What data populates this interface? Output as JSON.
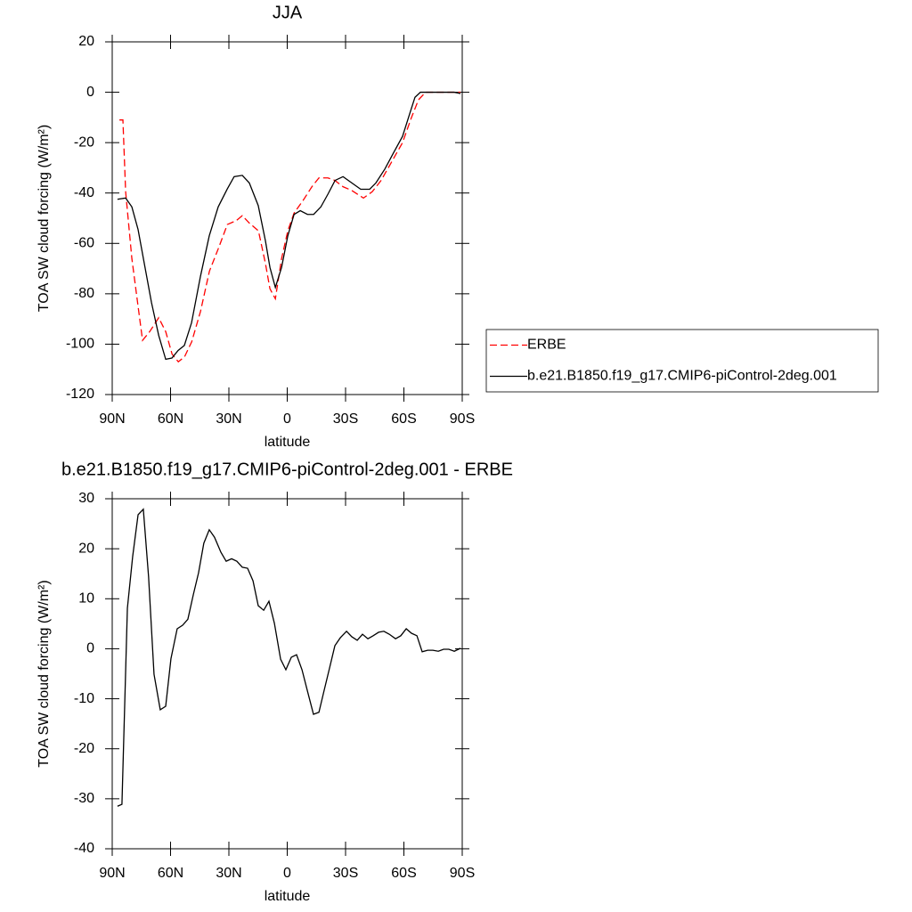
{
  "chart_data": [
    {
      "type": "line",
      "title": "JJA",
      "x_label": "latitude",
      "y_label": "TOA SW cloud forcing (W/m²)",
      "xlim": [
        90,
        -90
      ],
      "xticks": [
        {
          "value": 90,
          "label": "90N"
        },
        {
          "value": 60,
          "label": "60N"
        },
        {
          "value": 30,
          "label": "30N"
        },
        0,
        {
          "value": -30,
          "label": "30S"
        },
        {
          "value": -60,
          "label": "60S"
        },
        {
          "value": -90,
          "label": "90S"
        }
      ],
      "ylim": [
        -120,
        20
      ],
      "yticks": [
        20,
        0,
        -20,
        -40,
        -60,
        -80,
        -100,
        -120
      ],
      "legend": "right",
      "series": [
        {
          "name": "ERBE",
          "color": "#ff0000",
          "line_style": "dashed",
          "x": [
            86.3,
            84.5,
            83.1,
            79.9,
            76.7,
            74.4,
            70.7,
            66.1,
            62.5,
            59.2,
            56.0,
            52.8,
            49.1,
            44.6,
            40.0,
            35.4,
            30.8,
            26.3,
            23.1,
            19.4,
            14.8,
            11.2,
            8.9,
            6.1,
            2.9,
            -0.3,
            -3.5,
            -8.1,
            -12.7,
            -16.3,
            -20.9,
            -24.5,
            -28.7,
            -33.2,
            -39.2,
            -43.7,
            -48.3,
            -53.8,
            -59.3,
            -63.9,
            -67.5,
            -71.2,
            -79.0,
            -85.9,
            -89.1
          ],
          "values": [
            -11,
            -11,
            -39.5,
            -66,
            -85,
            -98.5,
            -95,
            -89.5,
            -95,
            -104,
            -107,
            -105,
            -99,
            -87,
            -71,
            -62,
            -52.5,
            -51,
            -49,
            -52,
            -55,
            -68,
            -78,
            -82,
            -66,
            -55,
            -48,
            -43,
            -37.5,
            -34,
            -34,
            -35,
            -37.5,
            -39,
            -42,
            -39.5,
            -35,
            -27.5,
            -20,
            -10,
            -3,
            0,
            0,
            0,
            0
          ]
        },
        {
          "name": "b.e21.B1850.f19_g17.CMIP6-piControl-2deg.001",
          "color": "#000000",
          "line_style": "solid",
          "x": [
            87.3,
            83.1,
            79.9,
            76.7,
            73.5,
            69.8,
            66.1,
            62.5,
            59.3,
            56.1,
            52.9,
            49.2,
            44.6,
            40.1,
            35.5,
            30.9,
            27.3,
            23.1,
            19.5,
            14.9,
            11.2,
            8.9,
            6.1,
            2.9,
            -0.3,
            -3.5,
            -6.7,
            -10.4,
            -13.6,
            -17.3,
            -20.9,
            -24.6,
            -28.7,
            -33.2,
            -37.8,
            -42.4,
            -45.6,
            -50.2,
            -54.7,
            -59.3,
            -63.0,
            -65.7,
            -68.5,
            -76.7,
            -85.9,
            -89.1
          ],
          "values": [
            -42.5,
            -42,
            -45.5,
            -54.5,
            -68,
            -83.5,
            -96.5,
            -106,
            -105.5,
            -102.5,
            -100.5,
            -91.5,
            -73,
            -57,
            -45.5,
            -38.5,
            -33.5,
            -33,
            -36,
            -45,
            -59,
            -69.5,
            -77.5,
            -69.5,
            -57,
            -48.5,
            -47,
            -48.5,
            -48.5,
            -45.5,
            -40.5,
            -35,
            -33.5,
            -36,
            -38.5,
            -38.5,
            -36,
            -30.5,
            -24,
            -17.5,
            -8.5,
            -2,
            0,
            0,
            0,
            -0.5
          ]
        }
      ]
    },
    {
      "type": "line",
      "title": "b.e21.B1850.f19_g17.CMIP6-piControl-2deg.001 - ERBE",
      "x_label": "latitude",
      "y_label": "TOA SW cloud forcing (W/m²)",
      "xlim": [
        90,
        -90
      ],
      "xticks": [
        {
          "value": 90,
          "label": "90N"
        },
        {
          "value": 60,
          "label": "60N"
        },
        {
          "value": 30,
          "label": "30N"
        },
        0,
        {
          "value": -30,
          "label": "30S"
        },
        {
          "value": -60,
          "label": "60S"
        },
        {
          "value": -90,
          "label": "90S"
        }
      ],
      "ylim": [
        -40,
        30
      ],
      "yticks": [
        30,
        20,
        10,
        0,
        -10,
        -20,
        -30,
        -40
      ],
      "series": [
        {
          "color": "#000000",
          "line_style": "solid",
          "x": [
            87.3,
            85.0,
            82.2,
            79.5,
            76.7,
            74.0,
            71.3,
            68.5,
            65.3,
            62.5,
            59.8,
            56.6,
            53.8,
            51.1,
            48.3,
            45.6,
            42.9,
            40.1,
            37.4,
            34.1,
            31.4,
            28.6,
            25.9,
            23.1,
            20.4,
            17.6,
            14.9,
            12.1,
            9.4,
            6.6,
            3.4,
            0.7,
            -2.1,
            -4.8,
            -7.6,
            -10.3,
            -13.5,
            -16.3,
            -19.0,
            -21.8,
            -24.5,
            -27.3,
            -30.5,
            -33.2,
            -36.0,
            -38.7,
            -41.5,
            -44.2,
            -47.0,
            -49.7,
            -52.5,
            -55.7,
            -58.4,
            -61.2,
            -63.9,
            -66.7,
            -69.4,
            -72.2,
            -74.9,
            -77.7,
            -80.4,
            -83.1,
            -85.9,
            -89.1
          ],
          "values": [
            -31.5,
            -31.1,
            8.1,
            18.4,
            26.8,
            27.9,
            14.4,
            -5.1,
            -12.2,
            -11.5,
            -2.0,
            4.0,
            4.7,
            5.9,
            10.8,
            15.2,
            21.1,
            23.8,
            22.3,
            19.3,
            17.5,
            18.0,
            17.5,
            16.3,
            16.1,
            13.6,
            8.6,
            7.7,
            9.5,
            5.1,
            -2.1,
            -4.2,
            -1.7,
            -1.2,
            -4.2,
            -8.3,
            -13.1,
            -12.7,
            -8.3,
            -3.8,
            0.6,
            2.2,
            3.5,
            2.4,
            1.7,
            2.9,
            2.0,
            2.6,
            3.3,
            3.5,
            2.9,
            2.0,
            2.6,
            4.0,
            3.1,
            2.6,
            -0.6,
            -0.3,
            -0.3,
            -0.5,
            -0.1,
            -0.1,
            -0.5,
            0.1
          ]
        }
      ]
    }
  ]
}
